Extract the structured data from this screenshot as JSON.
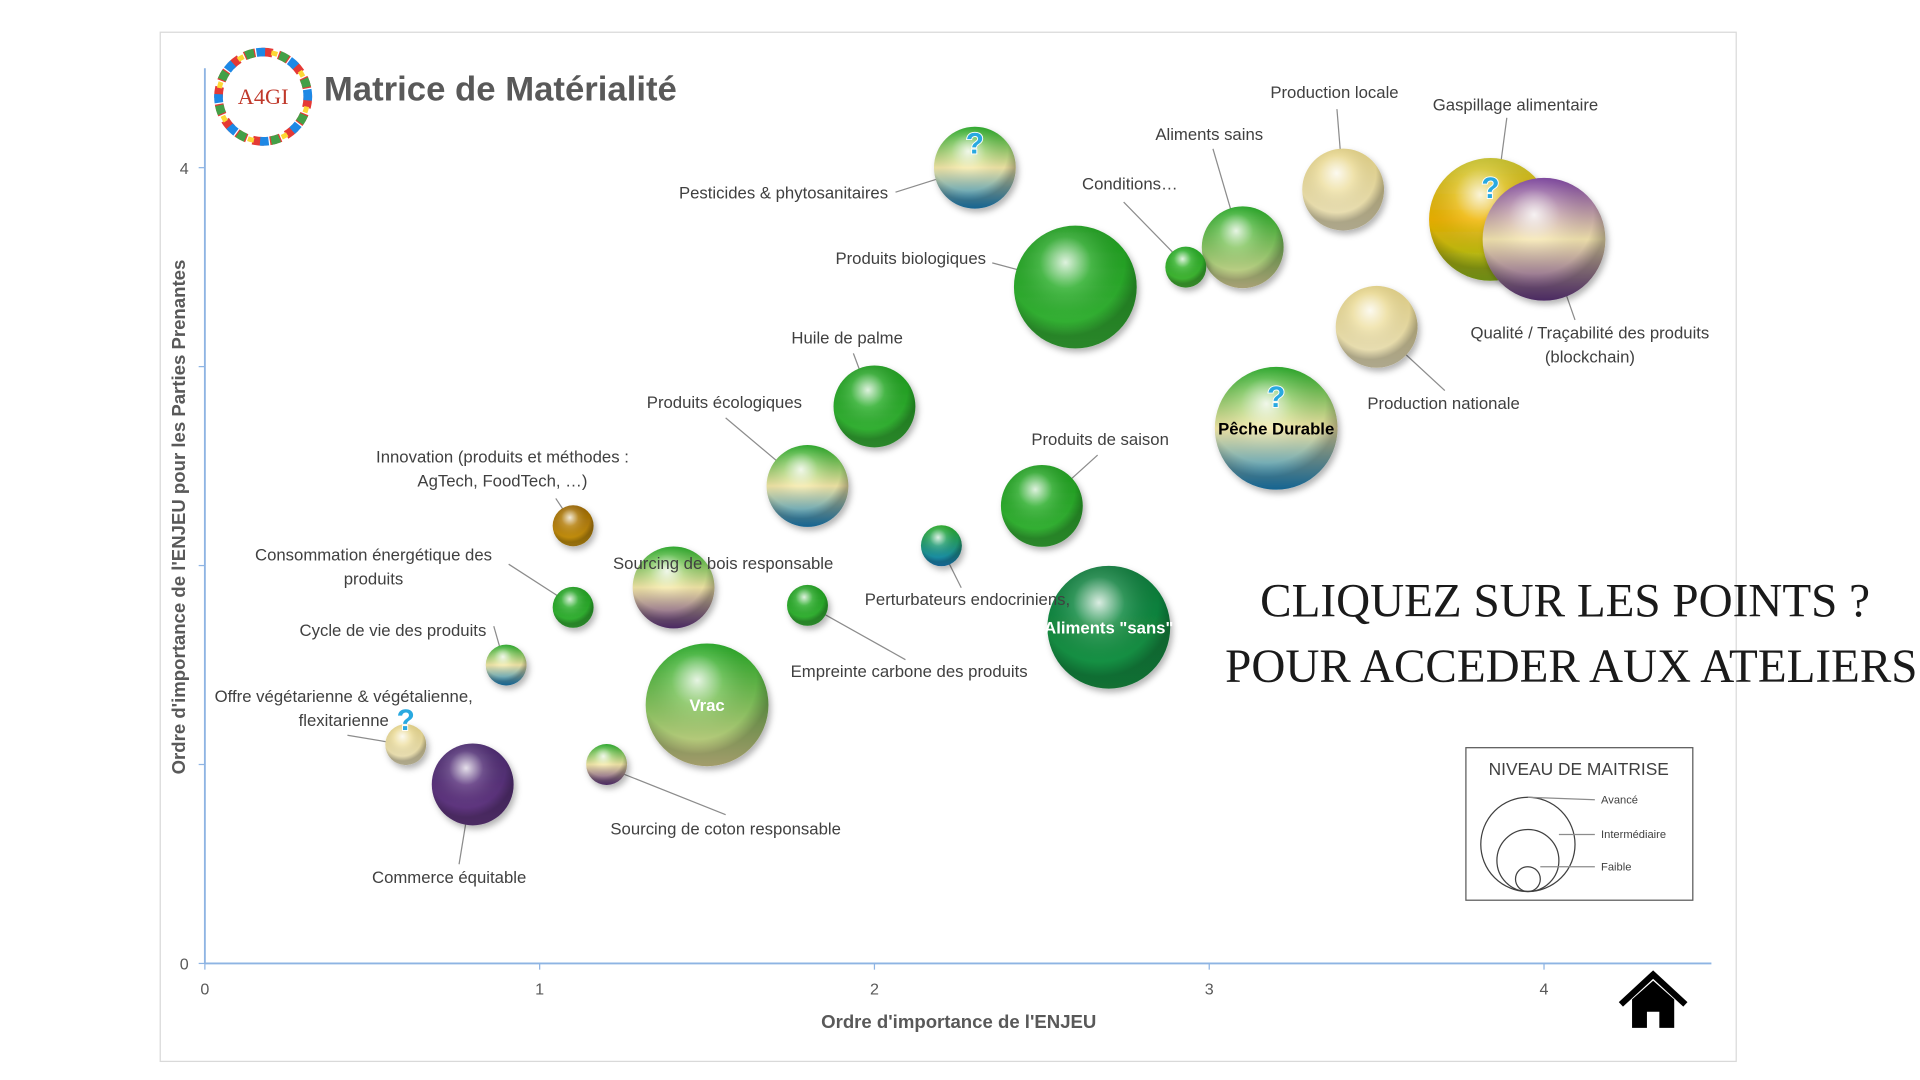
{
  "chart_data": {
    "type": "bubble",
    "title": "Matrice de Matérialité",
    "logo_text": "A4GI",
    "xlabel": "Ordre d'importance de l'ENJEU",
    "ylabel": "Ordre d'importance de l'ENJEU pour les Parties Prenantes",
    "xlim": [
      0,
      4.5
    ],
    "ylim": [
      0,
      4.5
    ],
    "xticks": [
      0,
      1,
      2,
      3,
      4
    ],
    "yticks": [
      0,
      4
    ],
    "yticks_unlabeled": [
      1,
      2,
      3
    ],
    "legend": {
      "title": "NIVEAU DE MAITRISE",
      "entries": [
        "Avancé",
        "Intermédiaire",
        "Faible"
      ]
    },
    "points": [
      {
        "label": [
          "Pesticides & phytosanitaires"
        ],
        "x": 2.3,
        "y": 4.0,
        "size": 2,
        "colors": [
          "#22a822",
          "#f5e9a8",
          "#1e8fd0"
        ],
        "question": true
      },
      {
        "label": [
          "Production locale"
        ],
        "x": 3.4,
        "y": 3.89,
        "size": 2,
        "colors": [
          "#e6d487",
          "#f8efc8"
        ],
        "question": false
      },
      {
        "label": [
          "Gaspillage alimentaire"
        ],
        "x": 3.84,
        "y": 3.74,
        "size": 3,
        "colors": [
          "#c9c32a",
          "#f0b400",
          "#9cc820"
        ],
        "question": true
      },
      {
        "label": [
          "Qualité / Traçabilité des produits",
          "(blockchain)"
        ],
        "x": 4.0,
        "y": 3.64,
        "size": 3,
        "colors": [
          "#7a3f9e",
          "#f5e6b0",
          "#6b3c8c"
        ],
        "question": false
      },
      {
        "label": [
          "Aliments sains"
        ],
        "x": 3.1,
        "y": 3.6,
        "size": 2,
        "colors": [
          "#22a822",
          "#f0e6a8"
        ],
        "question": false
      },
      {
        "label": [
          "Conditions…"
        ],
        "x": 2.93,
        "y": 3.5,
        "size": 1,
        "colors": [
          "#22a822",
          "#4cc23a"
        ],
        "question": false
      },
      {
        "label": [
          "Produits biologiques"
        ],
        "x": 2.6,
        "y": 3.4,
        "size": 3,
        "colors": [
          "#1e9e1e",
          "#3cc03c"
        ],
        "question": false
      },
      {
        "label": [
          "Production nationale"
        ],
        "x": 3.5,
        "y": 3.2,
        "size": 2,
        "colors": [
          "#e6d487",
          "#f8efc8"
        ],
        "question": false
      },
      {
        "label": [
          "Pêche Durable"
        ],
        "x": 3.2,
        "y": 2.69,
        "size": 3,
        "colors": [
          "#22a822",
          "#f5e9a8",
          "#1e8fd0"
        ],
        "question": true,
        "label_inside": true,
        "label_color": "#000000"
      },
      {
        "label": [
          "Huile de palme"
        ],
        "x": 2.0,
        "y": 2.8,
        "size": 2,
        "colors": [
          "#1e9e1e",
          "#3cc03c"
        ],
        "question": false
      },
      {
        "label": [
          "Produits écologiques"
        ],
        "x": 1.8,
        "y": 2.4,
        "size": 2,
        "colors": [
          "#22a822",
          "#f5e9a8",
          "#1e8fd0"
        ],
        "question": false
      },
      {
        "label": [
          "Produits de saison"
        ],
        "x": 2.5,
        "y": 2.3,
        "size": 2,
        "colors": [
          "#1e9e1e",
          "#3cc03c"
        ],
        "question": false
      },
      {
        "label": [
          "Innovation (produits et méthodes :",
          "AgTech, FoodTech, …)"
        ],
        "x": 1.1,
        "y": 2.2,
        "size": 1,
        "colors": [
          "#9a6500",
          "#d7a013"
        ],
        "question": false
      },
      {
        "label": [
          "Perturbateurs endocriniens,"
        ],
        "x": 2.2,
        "y": 2.1,
        "size": 1,
        "colors": [
          "#22a822",
          "#1e8fd0"
        ],
        "question": false
      },
      {
        "label": [
          "Sourcing de bois responsable"
        ],
        "x": 1.4,
        "y": 1.89,
        "size": 2,
        "colors": [
          "#22a822",
          "#f5e9a8",
          "#6b3c8c"
        ],
        "question": false
      },
      {
        "label": [
          "Consommation énergétique des",
          "produits"
        ],
        "x": 1.1,
        "y": 1.79,
        "size": 1,
        "colors": [
          "#1e9e1e",
          "#3cc03c"
        ],
        "question": false
      },
      {
        "label": [
          "Empreinte carbone des produits"
        ],
        "x": 1.8,
        "y": 1.8,
        "size": 1,
        "colors": [
          "#1e9e1e",
          "#3cc03c"
        ],
        "question": false
      },
      {
        "label": [
          "Aliments \"sans\""
        ],
        "x": 2.7,
        "y": 1.69,
        "size": 3,
        "colors": [
          "#0b7a3a",
          "#1aa04a"
        ],
        "question": false,
        "label_inside": true,
        "label_color": "#ffffff"
      },
      {
        "label": [
          "Cycle de vie des produits"
        ],
        "x": 0.9,
        "y": 1.5,
        "size": 1,
        "colors": [
          "#22a822",
          "#f5e9a8",
          "#1e8fd0"
        ],
        "question": false
      },
      {
        "label": [
          "Vrac"
        ],
        "x": 1.5,
        "y": 1.3,
        "size": 3,
        "colors": [
          "#22a822",
          "#e8e09a"
        ],
        "question": false,
        "label_inside": true,
        "label_color": "#ffffff"
      },
      {
        "label": [
          "Offre végétarienne & végétalienne,",
          "flexitarienne"
        ],
        "x": 0.6,
        "y": 1.1,
        "size": 1,
        "colors": [
          "#e6d487",
          "#f8efc8"
        ],
        "question": true
      },
      {
        "label": [
          "Sourcing de coton responsable"
        ],
        "x": 1.2,
        "y": 1.0,
        "size": 1,
        "colors": [
          "#22a822",
          "#f5e9a8",
          "#6b3c8c"
        ],
        "question": false
      },
      {
        "label": [
          "Commerce équitable"
        ],
        "x": 0.8,
        "y": 0.9,
        "size": 2,
        "colors": [
          "#4a2a6e",
          "#6b3c8c"
        ],
        "question": false
      }
    ],
    "overlay_text": [
      "CLIQUEZ SUR LES POINTS ?",
      "POUR ACCEDER AUX ATELIERS"
    ]
  }
}
